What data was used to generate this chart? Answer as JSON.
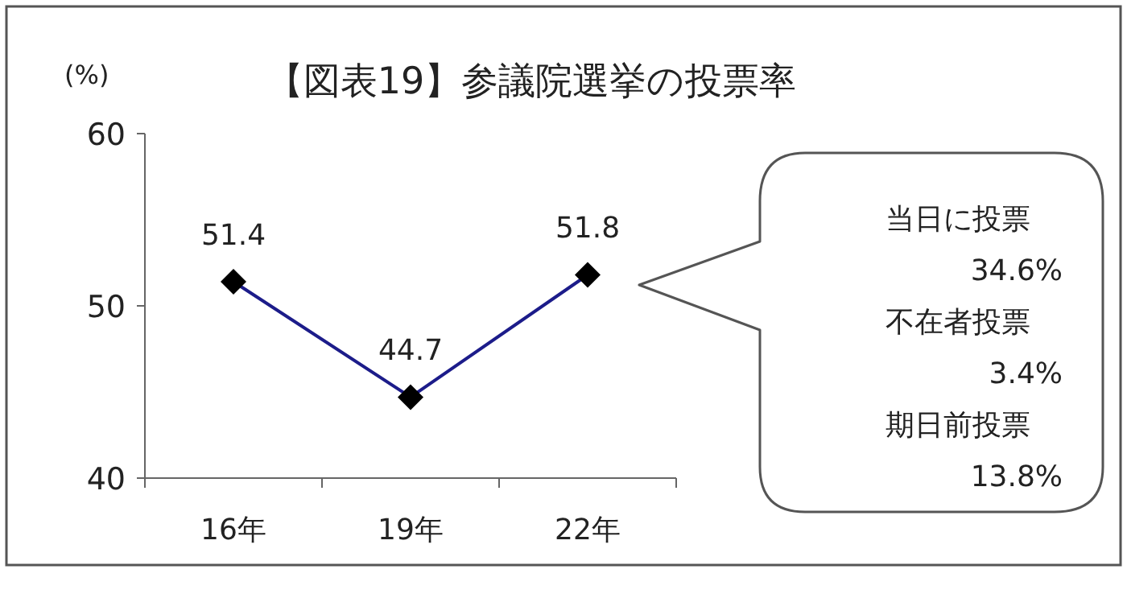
{
  "chart_data": {
    "type": "line",
    "title": "【図表19】参議院選挙の投票率",
    "ylabel": "(%)",
    "categories": [
      "16年",
      "19年",
      "22年"
    ],
    "series": [
      {
        "color": "#1c1c8a",
        "values": [
          51.4,
          44.7,
          51.8
        ]
      }
    ],
    "ylim": [
      40,
      60
    ],
    "yticks": [
      40,
      50,
      60
    ],
    "data_labels": true,
    "marker": "diamond",
    "grid": false,
    "annotations": [
      "当日に投票",
      "34.6%",
      "不在者投票",
      "3.4%",
      "期日前投票",
      "13.8%"
    ]
  }
}
